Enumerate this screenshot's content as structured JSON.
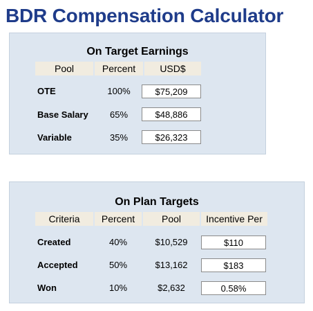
{
  "app": {
    "title": "BDR Compensation Calculator"
  },
  "ote_panel": {
    "title": "On Target Earnings",
    "headers": [
      "Pool",
      "Percent",
      "USD$"
    ],
    "rows": [
      {
        "label": "OTE",
        "percent": "100%",
        "value": "$75,209"
      },
      {
        "label": "Base Salary",
        "percent": "65%",
        "value": "$48,886"
      },
      {
        "label": "Variable",
        "percent": "35%",
        "value": "$26,323"
      }
    ]
  },
  "opt_panel": {
    "title": "On Plan Targets",
    "headers": [
      "Criteria",
      "Percent",
      "Pool",
      "Incentive Per"
    ],
    "rows": [
      {
        "label": "Created",
        "percent": "40%",
        "pool": "$10,529",
        "incentive": "$110"
      },
      {
        "label": "Accepted",
        "percent": "50%",
        "pool": "$13,162",
        "incentive": "$183"
      },
      {
        "label": "Won",
        "percent": "10%",
        "pool": "$2,632",
        "incentive": "0.58%"
      }
    ]
  },
  "colors": {
    "title": "#1f3c8a",
    "panel_bg": "#dde6f0",
    "header_bg": "#f1ece0"
  }
}
